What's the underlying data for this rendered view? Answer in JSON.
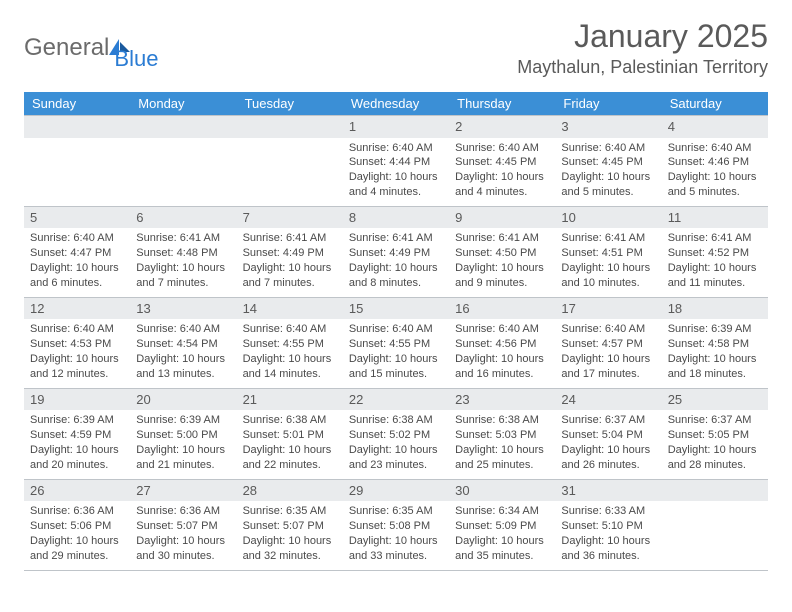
{
  "logo": {
    "word1": "General",
    "word2": "Blue"
  },
  "title": "January 2025",
  "location": "Maythalun, Palestinian Territory",
  "colors": {
    "header_bg": "#3b8fd6",
    "daynum_bg": "#e9ebed",
    "border": "#bfc4c9",
    "text": "#4a4a4a",
    "title": "#5a5a5a"
  },
  "typography": {
    "title_fontsize": 32,
    "location_fontsize": 18,
    "dow_fontsize": 13,
    "daynum_fontsize": 13,
    "body_fontsize": 11
  },
  "days_of_week": [
    "Sunday",
    "Monday",
    "Tuesday",
    "Wednesday",
    "Thursday",
    "Friday",
    "Saturday"
  ],
  "weeks": [
    [
      {
        "n": "",
        "sr": "",
        "ss": "",
        "dl": ""
      },
      {
        "n": "",
        "sr": "",
        "ss": "",
        "dl": ""
      },
      {
        "n": "",
        "sr": "",
        "ss": "",
        "dl": ""
      },
      {
        "n": "1",
        "sr": "Sunrise: 6:40 AM",
        "ss": "Sunset: 4:44 PM",
        "dl": "Daylight: 10 hours and 4 minutes."
      },
      {
        "n": "2",
        "sr": "Sunrise: 6:40 AM",
        "ss": "Sunset: 4:45 PM",
        "dl": "Daylight: 10 hours and 4 minutes."
      },
      {
        "n": "3",
        "sr": "Sunrise: 6:40 AM",
        "ss": "Sunset: 4:45 PM",
        "dl": "Daylight: 10 hours and 5 minutes."
      },
      {
        "n": "4",
        "sr": "Sunrise: 6:40 AM",
        "ss": "Sunset: 4:46 PM",
        "dl": "Daylight: 10 hours and 5 minutes."
      }
    ],
    [
      {
        "n": "5",
        "sr": "Sunrise: 6:40 AM",
        "ss": "Sunset: 4:47 PM",
        "dl": "Daylight: 10 hours and 6 minutes."
      },
      {
        "n": "6",
        "sr": "Sunrise: 6:41 AM",
        "ss": "Sunset: 4:48 PM",
        "dl": "Daylight: 10 hours and 7 minutes."
      },
      {
        "n": "7",
        "sr": "Sunrise: 6:41 AM",
        "ss": "Sunset: 4:49 PM",
        "dl": "Daylight: 10 hours and 7 minutes."
      },
      {
        "n": "8",
        "sr": "Sunrise: 6:41 AM",
        "ss": "Sunset: 4:49 PM",
        "dl": "Daylight: 10 hours and 8 minutes."
      },
      {
        "n": "9",
        "sr": "Sunrise: 6:41 AM",
        "ss": "Sunset: 4:50 PM",
        "dl": "Daylight: 10 hours and 9 minutes."
      },
      {
        "n": "10",
        "sr": "Sunrise: 6:41 AM",
        "ss": "Sunset: 4:51 PM",
        "dl": "Daylight: 10 hours and 10 minutes."
      },
      {
        "n": "11",
        "sr": "Sunrise: 6:41 AM",
        "ss": "Sunset: 4:52 PM",
        "dl": "Daylight: 10 hours and 11 minutes."
      }
    ],
    [
      {
        "n": "12",
        "sr": "Sunrise: 6:40 AM",
        "ss": "Sunset: 4:53 PM",
        "dl": "Daylight: 10 hours and 12 minutes."
      },
      {
        "n": "13",
        "sr": "Sunrise: 6:40 AM",
        "ss": "Sunset: 4:54 PM",
        "dl": "Daylight: 10 hours and 13 minutes."
      },
      {
        "n": "14",
        "sr": "Sunrise: 6:40 AM",
        "ss": "Sunset: 4:55 PM",
        "dl": "Daylight: 10 hours and 14 minutes."
      },
      {
        "n": "15",
        "sr": "Sunrise: 6:40 AM",
        "ss": "Sunset: 4:55 PM",
        "dl": "Daylight: 10 hours and 15 minutes."
      },
      {
        "n": "16",
        "sr": "Sunrise: 6:40 AM",
        "ss": "Sunset: 4:56 PM",
        "dl": "Daylight: 10 hours and 16 minutes."
      },
      {
        "n": "17",
        "sr": "Sunrise: 6:40 AM",
        "ss": "Sunset: 4:57 PM",
        "dl": "Daylight: 10 hours and 17 minutes."
      },
      {
        "n": "18",
        "sr": "Sunrise: 6:39 AM",
        "ss": "Sunset: 4:58 PM",
        "dl": "Daylight: 10 hours and 18 minutes."
      }
    ],
    [
      {
        "n": "19",
        "sr": "Sunrise: 6:39 AM",
        "ss": "Sunset: 4:59 PM",
        "dl": "Daylight: 10 hours and 20 minutes."
      },
      {
        "n": "20",
        "sr": "Sunrise: 6:39 AM",
        "ss": "Sunset: 5:00 PM",
        "dl": "Daylight: 10 hours and 21 minutes."
      },
      {
        "n": "21",
        "sr": "Sunrise: 6:38 AM",
        "ss": "Sunset: 5:01 PM",
        "dl": "Daylight: 10 hours and 22 minutes."
      },
      {
        "n": "22",
        "sr": "Sunrise: 6:38 AM",
        "ss": "Sunset: 5:02 PM",
        "dl": "Daylight: 10 hours and 23 minutes."
      },
      {
        "n": "23",
        "sr": "Sunrise: 6:38 AM",
        "ss": "Sunset: 5:03 PM",
        "dl": "Daylight: 10 hours and 25 minutes."
      },
      {
        "n": "24",
        "sr": "Sunrise: 6:37 AM",
        "ss": "Sunset: 5:04 PM",
        "dl": "Daylight: 10 hours and 26 minutes."
      },
      {
        "n": "25",
        "sr": "Sunrise: 6:37 AM",
        "ss": "Sunset: 5:05 PM",
        "dl": "Daylight: 10 hours and 28 minutes."
      }
    ],
    [
      {
        "n": "26",
        "sr": "Sunrise: 6:36 AM",
        "ss": "Sunset: 5:06 PM",
        "dl": "Daylight: 10 hours and 29 minutes."
      },
      {
        "n": "27",
        "sr": "Sunrise: 6:36 AM",
        "ss": "Sunset: 5:07 PM",
        "dl": "Daylight: 10 hours and 30 minutes."
      },
      {
        "n": "28",
        "sr": "Sunrise: 6:35 AM",
        "ss": "Sunset: 5:07 PM",
        "dl": "Daylight: 10 hours and 32 minutes."
      },
      {
        "n": "29",
        "sr": "Sunrise: 6:35 AM",
        "ss": "Sunset: 5:08 PM",
        "dl": "Daylight: 10 hours and 33 minutes."
      },
      {
        "n": "30",
        "sr": "Sunrise: 6:34 AM",
        "ss": "Sunset: 5:09 PM",
        "dl": "Daylight: 10 hours and 35 minutes."
      },
      {
        "n": "31",
        "sr": "Sunrise: 6:33 AM",
        "ss": "Sunset: 5:10 PM",
        "dl": "Daylight: 10 hours and 36 minutes."
      },
      {
        "n": "",
        "sr": "",
        "ss": "",
        "dl": ""
      }
    ]
  ]
}
